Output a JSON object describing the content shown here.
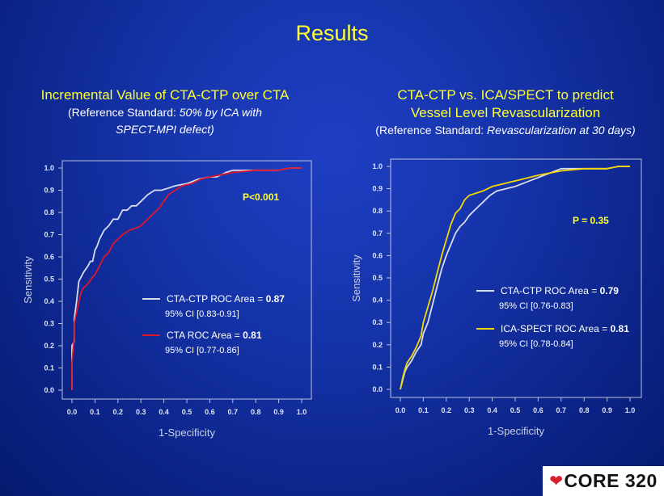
{
  "slide": {
    "title": "Results",
    "left": {
      "heading": "Incremental Value of  CTA-CTP over CTA",
      "ref_prefix": "(Reference Standard: ",
      "ref_italic_1": "50% by ICA with",
      "ref_italic_2": "SPECT-MPI defect)"
    },
    "right": {
      "heading_1": "CTA-CTP vs. ICA/SPECT to predict",
      "heading_2": "Vessel Level Revascularization",
      "ref_prefix": "(Reference Standard: ",
      "ref_italic": "Revascularization at 30 days)"
    },
    "logo_text": "CORE 320"
  },
  "chart_data": [
    {
      "type": "line",
      "xlabel": "1-Specificity",
      "ylabel": "Sensitivity",
      "xlim": [
        0,
        1
      ],
      "ylim": [
        0,
        1
      ],
      "xticks": [
        "0.0",
        "0.1",
        "0.2",
        "0.3",
        "0.4",
        "0.5",
        "0.6",
        "0.7",
        "0.8",
        "0.9",
        "1.0"
      ],
      "yticks": [
        "0.0",
        "0.1",
        "0.2",
        "0.3",
        "0.4",
        "0.5",
        "0.6",
        "0.7",
        "0.8",
        "0.9",
        "1.0"
      ],
      "annotation": "P<0.001",
      "series": [
        {
          "name": "CTA-CTP ROC Area = 0.87",
          "area_prefix": "CTA-CTP ROC Area = ",
          "area_value": "0.87",
          "ci": "95% CI [0.83-0.91]",
          "color": "#d8dcec",
          "x": [
            0,
            0,
            0.01,
            0.01,
            0.02,
            0.03,
            0.05,
            0.07,
            0.08,
            0.09,
            0.1,
            0.11,
            0.12,
            0.13,
            0.14,
            0.16,
            0.18,
            0.2,
            0.22,
            0.24,
            0.26,
            0.28,
            0.3,
            0.33,
            0.36,
            0.39,
            0.42,
            0.45,
            0.5,
            0.55,
            0.6,
            0.63,
            0.67,
            0.7,
            0.8,
            0.9,
            0.95,
            1.0
          ],
          "y": [
            0,
            0.2,
            0.22,
            0.32,
            0.4,
            0.49,
            0.53,
            0.56,
            0.58,
            0.58,
            0.63,
            0.65,
            0.68,
            0.7,
            0.72,
            0.74,
            0.77,
            0.77,
            0.81,
            0.81,
            0.83,
            0.83,
            0.85,
            0.88,
            0.9,
            0.9,
            0.91,
            0.92,
            0.93,
            0.95,
            0.96,
            0.96,
            0.98,
            0.99,
            0.99,
            0.99,
            1.0,
            1.0
          ]
        },
        {
          "name": "CTA ROC Area = 0.81",
          "area_prefix": "CTA ROC Area = ",
          "area_value": "0.81",
          "ci": "95% CI [0.77-0.86]",
          "color": "#e0162b",
          "x": [
            0,
            0,
            0.01,
            0.01,
            0.02,
            0.03,
            0.04,
            0.05,
            0.07,
            0.09,
            0.1,
            0.12,
            0.14,
            0.16,
            0.18,
            0.2,
            0.22,
            0.25,
            0.28,
            0.3,
            0.33,
            0.36,
            0.38,
            0.4,
            0.42,
            0.45,
            0.48,
            0.52,
            0.56,
            0.6,
            0.65,
            0.7,
            0.8,
            0.9,
            0.95,
            1.0
          ],
          "y": [
            0,
            0.12,
            0.24,
            0.3,
            0.35,
            0.4,
            0.44,
            0.46,
            0.48,
            0.51,
            0.52,
            0.56,
            0.6,
            0.62,
            0.66,
            0.68,
            0.7,
            0.72,
            0.73,
            0.74,
            0.77,
            0.8,
            0.82,
            0.85,
            0.88,
            0.9,
            0.92,
            0.93,
            0.95,
            0.96,
            0.97,
            0.98,
            0.99,
            0.99,
            1.0,
            1.0
          ]
        }
      ]
    },
    {
      "type": "line",
      "xlabel": "1-Specificity",
      "ylabel": "Sensitivity",
      "xlim": [
        0,
        1
      ],
      "ylim": [
        0,
        1
      ],
      "xticks": [
        "0.0",
        "0.1",
        "0.2",
        "0.3",
        "0.4",
        "0.5",
        "0.6",
        "0.7",
        "0.8",
        "0.9",
        "1.0"
      ],
      "yticks": [
        "0.0",
        "0.1",
        "0.2",
        "0.3",
        "0.4",
        "0.5",
        "0.6",
        "0.7",
        "0.8",
        "0.9",
        "1.0"
      ],
      "annotation": "P = 0.35",
      "series": [
        {
          "name": "CTA-CTP ROC Area = 0.79",
          "area_prefix": "CTA-CTP ROC Area = ",
          "area_value": "0.79",
          "ci": "95% CI [0.76-0.83]",
          "color": "#d8dcec",
          "x": [
            0,
            0.01,
            0.02,
            0.03,
            0.05,
            0.07,
            0.09,
            0.1,
            0.12,
            0.14,
            0.16,
            0.18,
            0.2,
            0.22,
            0.24,
            0.26,
            0.28,
            0.3,
            0.33,
            0.36,
            0.39,
            0.42,
            0.46,
            0.5,
            0.55,
            0.6,
            0.65,
            0.7,
            0.8,
            0.9,
            0.95,
            1.0
          ],
          "y": [
            0,
            0.04,
            0.08,
            0.1,
            0.13,
            0.17,
            0.2,
            0.25,
            0.3,
            0.38,
            0.46,
            0.54,
            0.6,
            0.65,
            0.7,
            0.73,
            0.75,
            0.78,
            0.81,
            0.84,
            0.87,
            0.89,
            0.9,
            0.91,
            0.93,
            0.95,
            0.97,
            0.99,
            0.99,
            0.99,
            1.0,
            1.0
          ]
        },
        {
          "name": "ICA-SPECT ROC Area = 0.81",
          "area_prefix": "ICA-SPECT ROC Area = ",
          "area_value": "0.81",
          "ci": "95% CI [0.78-0.84]",
          "color": "#f5d800",
          "x": [
            0,
            0.01,
            0.02,
            0.03,
            0.05,
            0.07,
            0.09,
            0.1,
            0.12,
            0.14,
            0.16,
            0.18,
            0.2,
            0.22,
            0.24,
            0.26,
            0.28,
            0.3,
            0.33,
            0.36,
            0.4,
            0.44,
            0.48,
            0.52,
            0.56,
            0.6,
            0.65,
            0.7,
            0.8,
            0.9,
            0.95,
            1.0
          ],
          "y": [
            0,
            0.05,
            0.09,
            0.12,
            0.15,
            0.19,
            0.24,
            0.3,
            0.37,
            0.44,
            0.52,
            0.6,
            0.67,
            0.74,
            0.79,
            0.81,
            0.85,
            0.87,
            0.88,
            0.89,
            0.91,
            0.92,
            0.93,
            0.94,
            0.95,
            0.96,
            0.97,
            0.98,
            0.99,
            0.99,
            1.0,
            1.0
          ]
        }
      ]
    }
  ]
}
